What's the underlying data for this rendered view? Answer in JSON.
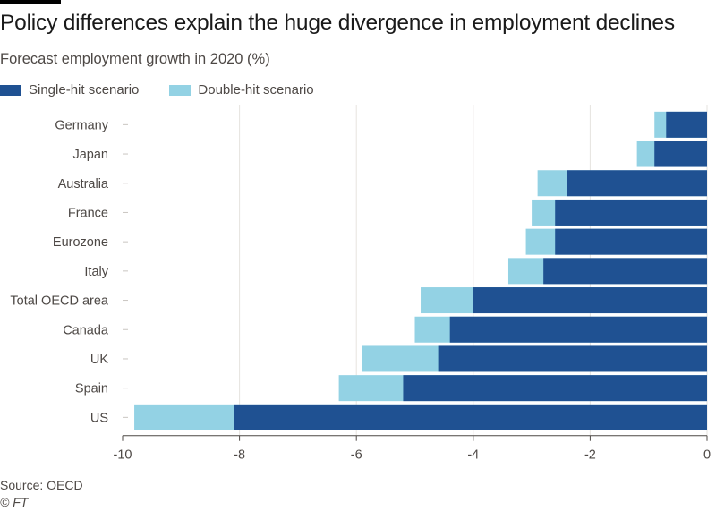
{
  "header": {
    "title": "Policy differences explain the huge divergence in employment declines",
    "subtitle": "Forecast employment growth in 2020 (%)"
  },
  "legend": {
    "items": [
      {
        "label": "Single-hit scenario",
        "color": "#1f5192"
      },
      {
        "label": "Double-hit scenario",
        "color": "#93d2e4"
      }
    ]
  },
  "footer": {
    "source": "Source: OECD",
    "copyright": "© FT"
  },
  "chart_data": {
    "type": "bar",
    "orientation": "horizontal",
    "stacked": false,
    "categories": [
      "Germany",
      "Japan",
      "Australia",
      "France",
      "Eurozone",
      "Italy",
      "Total OECD area",
      "Canada",
      "UK",
      "Spain",
      "US"
    ],
    "series": [
      {
        "name": "Double-hit scenario",
        "color": "#93d2e4",
        "values": [
          -0.9,
          -1.2,
          -2.9,
          -3.0,
          -3.1,
          -3.4,
          -4.9,
          -5.0,
          -5.9,
          -6.3,
          -9.8
        ]
      },
      {
        "name": "Single-hit scenario",
        "color": "#1f5192",
        "values": [
          -0.7,
          -0.9,
          -2.4,
          -2.6,
          -2.6,
          -2.8,
          -4.0,
          -4.4,
          -4.6,
          -5.2,
          -8.1
        ]
      }
    ],
    "xlim": [
      -10,
      0
    ],
    "xticks": [
      -10,
      -8,
      -6,
      -4,
      -2,
      0
    ],
    "grid": true,
    "legend_position": "top-left"
  }
}
